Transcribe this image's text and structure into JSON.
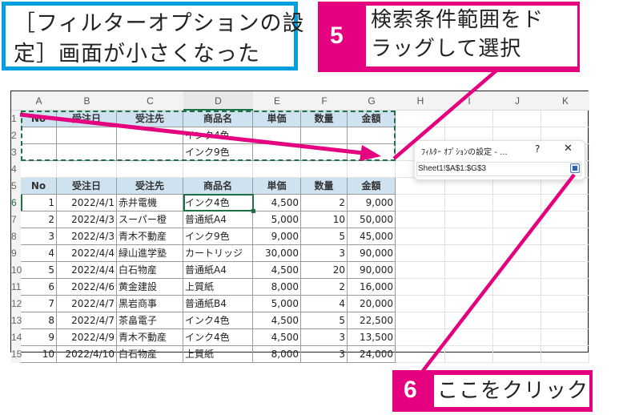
{
  "callouts": {
    "info": {
      "text": "［フィルターオプションの設\n定］画面が小さくなった"
    },
    "step5": {
      "number": "5",
      "text": "検索条件範囲をド\nラッグして選択"
    },
    "step6": {
      "number": "6",
      "text": "ここをクリック"
    }
  },
  "colors": {
    "accent_pink": "#e4007f",
    "accent_blue": "#00a0e0",
    "excel_green": "#1e7145",
    "header_fill": "#cfe2f0"
  },
  "sheet": {
    "columns": [
      "A",
      "B",
      "C",
      "D",
      "E",
      "F",
      "G",
      "H",
      "I",
      "J",
      "K"
    ],
    "selected_column": "D",
    "row_numbers": [
      "1",
      "2",
      "3",
      "4",
      "5",
      "6",
      "7",
      "8",
      "9",
      "10",
      "11",
      "12",
      "13",
      "14",
      "15"
    ],
    "criteria_headers": [
      "No",
      "受注日",
      "受注先",
      "商品名",
      "単価",
      "数量",
      "金額"
    ],
    "criteria_rows": [
      [
        "",
        "",
        "",
        "インク4色",
        "",
        "",
        ""
      ],
      [
        "",
        "",
        "",
        "インク9色",
        "",
        "",
        ""
      ]
    ],
    "table_headers": [
      "No",
      "受注日",
      "受注先",
      "商品名",
      "単価",
      "数量",
      "金額"
    ],
    "table_rows": [
      [
        "1",
        "2022/4/1",
        "赤井電機",
        "インク4色",
        "4,500",
        "2",
        "9,000"
      ],
      [
        "2",
        "2022/4/3",
        "スーパー橙",
        "普通紙A4",
        "5,000",
        "10",
        "50,000"
      ],
      [
        "3",
        "2022/4/3",
        "青木不動産",
        "インク9色",
        "9,000",
        "5",
        "45,000"
      ],
      [
        "4",
        "2022/4/4",
        "緑山進学塾",
        "カートリッジ",
        "30,000",
        "3",
        "90,000"
      ],
      [
        "5",
        "2022/4/4",
        "白石物産",
        "普通紙A4",
        "4,500",
        "20",
        "90,000"
      ],
      [
        "6",
        "2022/4/6",
        "黄金建設",
        "上質紙",
        "8,000",
        "2",
        "16,000"
      ],
      [
        "7",
        "2022/4/7",
        "黒岩商事",
        "普通紙B4",
        "5,000",
        "4",
        "20,000"
      ],
      [
        "8",
        "2022/4/7",
        "茶畠電子",
        "インク4色",
        "4,500",
        "5",
        "22,500"
      ],
      [
        "9",
        "2022/4/9",
        "青木不動産",
        "インク4色",
        "4,500",
        "3",
        "13,500"
      ],
      [
        "10",
        "2022/4/10",
        "白石物産",
        "上質紙",
        "8,000",
        "3",
        "24,000"
      ]
    ]
  },
  "dialog": {
    "title": "ﾌｨﾙﾀｰ ｵﾌﾟｼｮﾝの設定 - ...",
    "help": "?",
    "close": "✕",
    "range_value": "Sheet1!$A$1:$G$3"
  }
}
